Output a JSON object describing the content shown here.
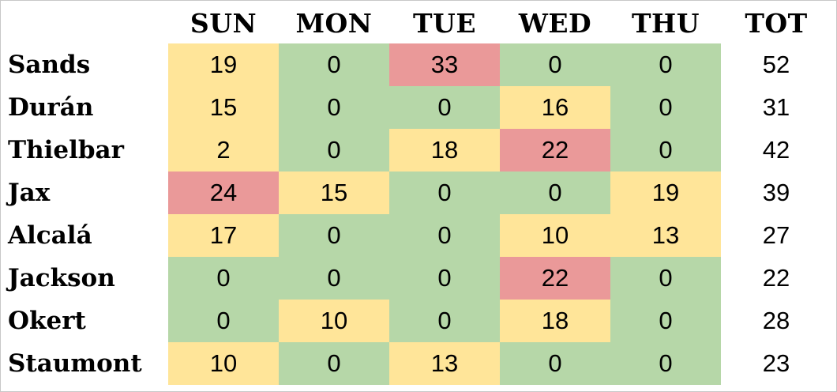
{
  "chart_data": {
    "type": "heatmap",
    "columns": [
      "SUN",
      "MON",
      "TUE",
      "WED",
      "THU"
    ],
    "total_label": "TOT",
    "rows": [
      {
        "name": "Sands",
        "values": [
          19,
          0,
          33,
          0,
          0
        ],
        "total": 52
      },
      {
        "name": "Durán",
        "values": [
          15,
          0,
          0,
          16,
          0
        ],
        "total": 31
      },
      {
        "name": "Thielbar",
        "values": [
          2,
          0,
          18,
          22,
          0
        ],
        "total": 42
      },
      {
        "name": "Jax",
        "values": [
          24,
          15,
          0,
          0,
          19
        ],
        "total": 39
      },
      {
        "name": "Alcalá",
        "values": [
          17,
          0,
          0,
          10,
          13
        ],
        "total": 27
      },
      {
        "name": "Jackson",
        "values": [
          0,
          0,
          0,
          22,
          0
        ],
        "total": 22
      },
      {
        "name": "Okert",
        "values": [
          0,
          10,
          0,
          18,
          0
        ],
        "total": 28
      },
      {
        "name": "Staumont",
        "values": [
          10,
          0,
          13,
          0,
          0
        ],
        "total": 23
      }
    ],
    "color_scale": {
      "low": {
        "max": 0,
        "color": "#b6d7a8"
      },
      "mid": {
        "max": 19,
        "color": "#ffe599"
      },
      "high": {
        "min": 20,
        "color": "#ea9999"
      }
    }
  }
}
